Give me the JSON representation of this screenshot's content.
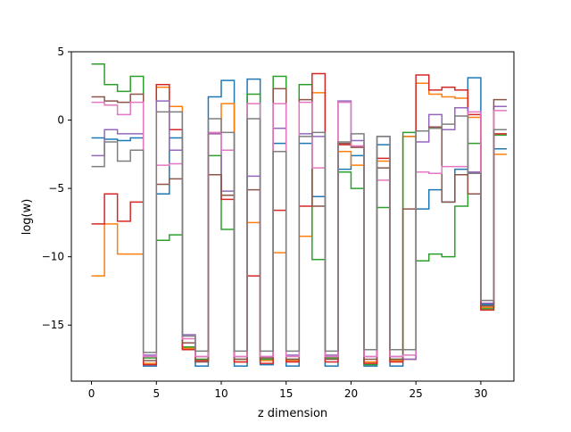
{
  "chart_data": {
    "type": "line",
    "step": "post",
    "title": "",
    "xlabel": "z dimension",
    "ylabel": "log(w)",
    "xlim": [
      -1.55,
      32.55
    ],
    "ylim": [
      -19.1,
      5.0
    ],
    "x_ticks": [
      0,
      5,
      10,
      15,
      20,
      25,
      30
    ],
    "x_tick_labels": [
      "0",
      "5",
      "10",
      "15",
      "20",
      "25",
      "30"
    ],
    "y_ticks": [
      5,
      0,
      -5,
      -10,
      -15
    ],
    "y_tick_labels": [
      "5",
      "0",
      "−5",
      "−10",
      "−15"
    ],
    "grid": false,
    "legend": "none",
    "x": [
      0,
      1,
      2,
      3,
      4,
      5,
      6,
      7,
      8,
      9,
      10,
      11,
      12,
      13,
      14,
      15,
      16,
      17,
      18,
      19,
      20,
      21,
      22,
      23,
      24,
      25,
      26,
      27,
      28,
      29,
      30,
      31,
      32
    ],
    "series": [
      {
        "color": "#1f77b4",
        "values": [
          -1.3,
          -1.4,
          -1.5,
          -1.3,
          -18.0,
          -5.4,
          -1.3,
          -16.7,
          -18.0,
          1.7,
          2.9,
          -18.0,
          3.0,
          -17.9,
          -1.7,
          -18.0,
          -1.7,
          -5.6,
          -18.0,
          -3.6,
          -2.6,
          -18.0,
          -1.8,
          -18.0,
          -1.2,
          -6.5,
          -5.1,
          -6.0,
          -3.6,
          3.1,
          -13.5,
          -2.1,
          -2.1
        ]
      },
      {
        "color": "#ff7f0e",
        "values": [
          -11.4,
          -7.6,
          -9.8,
          -9.8,
          -17.8,
          2.4,
          1.0,
          -16.7,
          -17.5,
          -1.0,
          1.2,
          -17.7,
          -7.5,
          -17.6,
          -9.7,
          -17.6,
          -8.5,
          2.0,
          -17.4,
          -2.3,
          -3.3,
          -17.7,
          -3.0,
          -17.6,
          -1.2,
          2.7,
          1.9,
          1.7,
          1.6,
          0.2,
          -13.7,
          -2.5,
          -2.5
        ]
      },
      {
        "color": "#2ca02c",
        "values": [
          4.1,
          2.6,
          2.1,
          3.2,
          -17.4,
          -8.8,
          -8.4,
          -16.6,
          -17.5,
          -2.6,
          -8.0,
          -17.5,
          1.9,
          -17.5,
          3.2,
          -17.5,
          2.6,
          -10.2,
          -17.4,
          -3.8,
          -5.0,
          -17.9,
          -6.4,
          -17.5,
          -0.9,
          -10.3,
          -9.8,
          -10.0,
          -6.3,
          -1.7,
          -13.8,
          -1.1,
          -1.1
        ]
      },
      {
        "color": "#d62728",
        "values": [
          -7.6,
          -5.4,
          -7.4,
          -6.0,
          -17.9,
          2.6,
          -0.7,
          -16.8,
          -17.6,
          -4.0,
          -5.8,
          -17.7,
          -11.4,
          -17.8,
          -6.6,
          -17.7,
          -6.3,
          3.4,
          -17.7,
          -1.8,
          -1.9,
          -17.8,
          -2.8,
          -17.7,
          -17.5,
          3.3,
          2.2,
          2.4,
          2.2,
          0.4,
          -13.9,
          -1.0,
          -1.0
        ]
      },
      {
        "color": "#9467bd",
        "values": [
          -2.6,
          -0.7,
          -1.0,
          -1.0,
          -17.2,
          1.4,
          -2.2,
          -15.7,
          -17.3,
          -1.0,
          -5.2,
          -17.3,
          -4.1,
          -17.3,
          -0.6,
          -17.2,
          -1.0,
          -1.2,
          -17.2,
          1.4,
          -1.5,
          -17.3,
          -1.2,
          -17.3,
          -17.5,
          -1.6,
          0.4,
          -0.7,
          0.9,
          -3.8,
          -13.4,
          1.0,
          1.0
        ]
      },
      {
        "color": "#8c564b",
        "values": [
          1.7,
          1.4,
          1.3,
          1.9,
          -17.6,
          -4.7,
          -4.3,
          -16.3,
          -17.7,
          -4.0,
          -5.5,
          -17.5,
          -5.1,
          -17.4,
          2.3,
          -17.5,
          1.5,
          -6.3,
          -17.5,
          -1.7,
          -2.0,
          -17.5,
          -3.5,
          -17.5,
          -6.5,
          -0.8,
          -0.5,
          -6.0,
          -4.0,
          -5.4,
          -13.6,
          1.5,
          1.5
        ]
      },
      {
        "color": "#e377c2",
        "values": [
          1.3,
          1.1,
          0.4,
          1.3,
          -17.3,
          -3.3,
          -3.2,
          -16.0,
          -17.3,
          -0.9,
          -2.2,
          -17.3,
          1.2,
          -17.3,
          1.2,
          -17.3,
          1.3,
          -3.5,
          -17.3,
          1.3,
          -1.9,
          -17.3,
          -4.4,
          -17.3,
          -17.2,
          -3.8,
          -3.9,
          -3.4,
          -3.4,
          0.6,
          -13.2,
          0.7,
          0.7
        ]
      },
      {
        "color": "#7f7f7f",
        "values": [
          -3.4,
          -1.6,
          -3.0,
          -2.2,
          -17.0,
          0.6,
          0.6,
          -15.8,
          -16.9,
          0.1,
          -0.9,
          -16.9,
          0.1,
          -16.9,
          -2.3,
          -16.9,
          -1.2,
          -0.9,
          -16.9,
          -1.6,
          -1.0,
          -16.8,
          -1.2,
          -16.8,
          -16.8,
          -0.8,
          -0.6,
          -0.3,
          0.3,
          -3.9,
          -13.2,
          -0.7,
          -0.7
        ]
      }
    ]
  }
}
